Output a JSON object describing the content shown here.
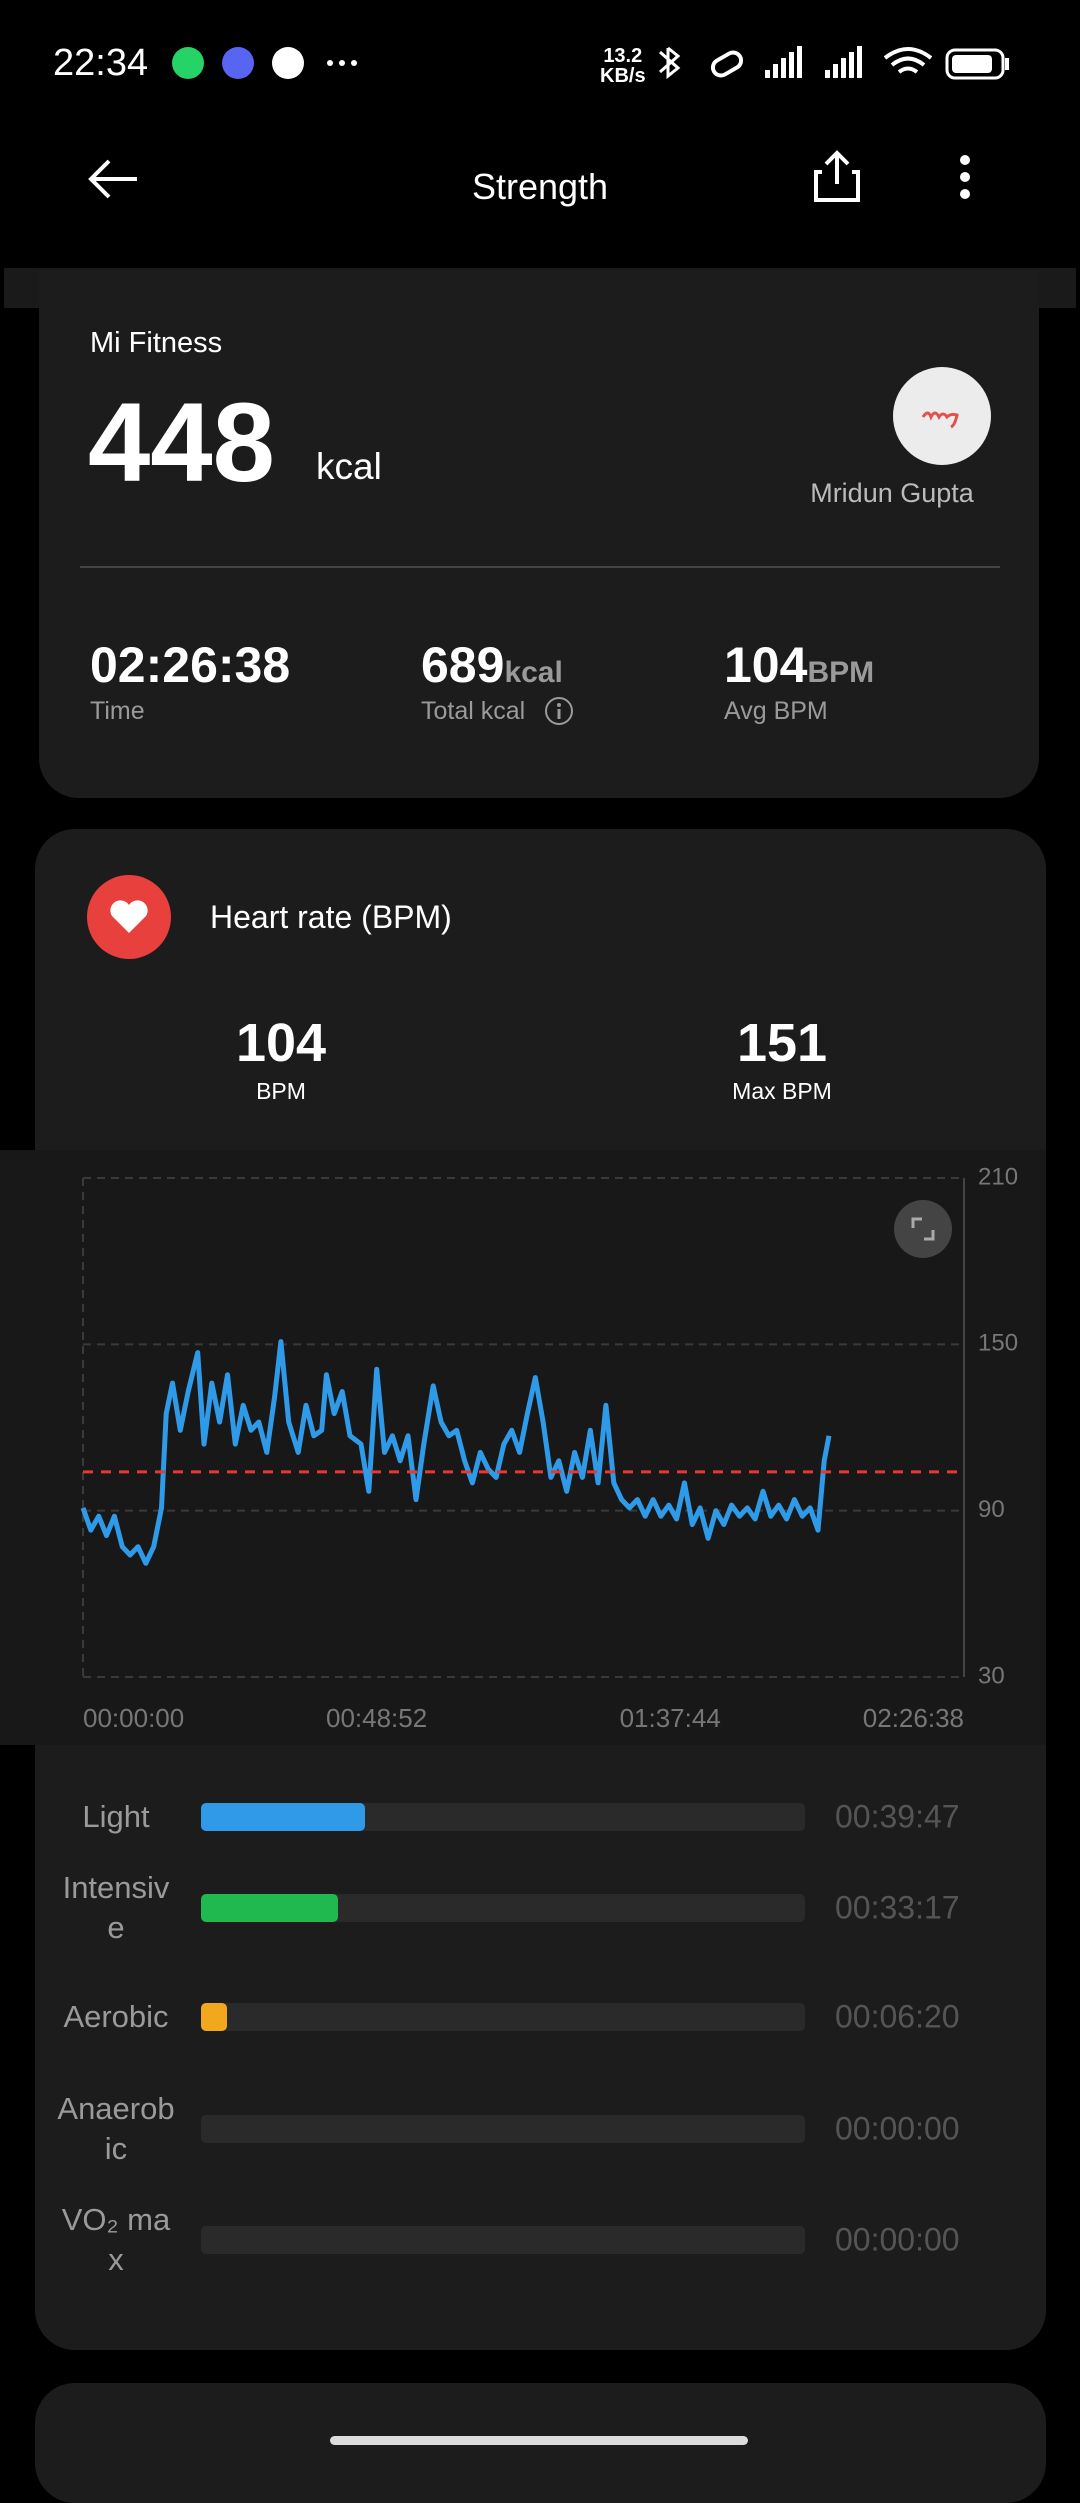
{
  "status_bar": {
    "time": "22:34",
    "net_speed": "13.2",
    "net_unit": "KB/s"
  },
  "header": {
    "title": "Strength"
  },
  "summary": {
    "source": "Mi Fitness",
    "calories": "448",
    "calories_unit": "kcal",
    "user": "Mridun Gupta",
    "stats": [
      {
        "value": "02:26:38",
        "label": "Time"
      },
      {
        "value": "689",
        "unit": "kcal",
        "label": "Total kcal"
      },
      {
        "value": "104",
        "unit": "BPM",
        "label": "Avg BPM"
      }
    ]
  },
  "heart_rate": {
    "title": "Heart rate (BPM)",
    "avg": {
      "value": "104",
      "label": "BPM"
    },
    "max": {
      "value": "151",
      "label": "Max BPM"
    }
  },
  "chart_data": {
    "type": "line",
    "x": [
      0,
      78,
      157,
      235,
      314,
      392,
      470,
      549,
      627,
      706,
      784,
      831,
      894,
      972,
      1051,
      1145,
      1208,
      1286,
      1364,
      1443,
      1521,
      1600,
      1678,
      1756,
      1835,
      1913,
      1976,
      2054,
      2149,
      2227,
      2305,
      2384,
      2431,
      2509,
      2588,
      2666,
      2776,
      2854,
      2933,
      3011,
      3090,
      3168,
      3246,
      3325,
      3403,
      3497,
      3576,
      3654,
      3732,
      3811,
      3889,
      3968,
      4046,
      4125,
      4203,
      4281,
      4360,
      4438,
      4517,
      4595,
      4673,
      4752,
      4830,
      4909,
      4987,
      5066,
      5144,
      5222,
      5301,
      5379,
      5458,
      5536,
      5614,
      5693,
      5771,
      5850,
      5928,
      6006,
      6085,
      6163,
      6242,
      6320,
      6399,
      6477,
      6556,
      6634,
      6712,
      6791,
      6869,
      6948,
      7026,
      7104,
      7183,
      7261,
      7340,
      7402,
      7450
    ],
    "series": [
      {
        "color": "#2f9be8",
        "values": [
          91,
          83,
          88,
          81,
          88,
          77,
          74,
          77,
          71,
          77,
          91,
          125,
          136,
          119,
          133,
          147,
          114,
          136,
          122,
          139,
          114,
          128,
          119,
          122,
          111,
          131,
          151,
          122,
          111,
          128,
          117,
          119,
          139,
          125,
          133,
          117,
          114,
          97,
          141,
          111,
          117,
          108,
          117,
          94,
          114,
          135,
          122,
          117,
          119,
          108,
          100,
          111,
          105,
          102,
          114,
          119,
          111,
          125,
          138,
          122,
          102,
          108,
          97,
          111,
          102,
          119,
          100,
          128,
          100,
          94,
          91,
          94,
          88,
          94,
          88,
          92,
          87,
          100,
          85,
          91,
          80,
          90,
          85,
          92,
          88,
          91,
          87,
          97,
          88,
          92,
          87,
          94,
          88,
          91,
          83,
          108,
          117
        ]
      }
    ],
    "reference_line": {
      "value": 104,
      "color": "#e53935"
    },
    "xlim": [
      0,
      8798
    ],
    "ylim": [
      30,
      210
    ],
    "yticks": [
      30,
      90,
      150,
      210
    ],
    "xticks": [
      {
        "value": 0,
        "label": "00:00:00"
      },
      {
        "value": 2932,
        "label": "00:48:52"
      },
      {
        "value": 5864,
        "label": "01:37:44"
      },
      {
        "value": 8798,
        "label": "02:26:38"
      }
    ],
    "grid": true
  },
  "zones": [
    {
      "name": "Light",
      "duration": "00:39:47",
      "color": "#2f9be8"
    },
    {
      "name": "Intensive",
      "duration": "00:33:17",
      "color": "#1fb94f"
    },
    {
      "name": "Aerobic",
      "duration": "00:06:20",
      "color": "#f2a81d"
    },
    {
      "name": "Anaerobic",
      "duration": "00:00:00",
      "color": "#e8572a"
    },
    {
      "name": "VO₂ max",
      "duration": "00:00:00",
      "color": "#d12b2b"
    }
  ]
}
